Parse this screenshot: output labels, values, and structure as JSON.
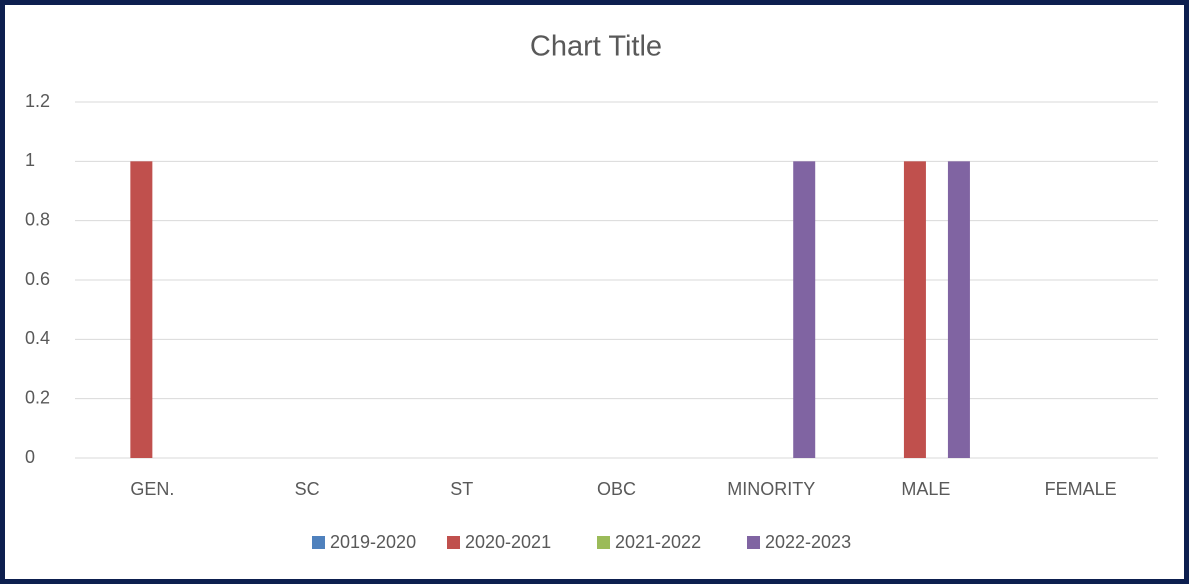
{
  "chart_data": {
    "type": "bar",
    "title": "Chart Title",
    "categories": [
      "GEN.",
      "SC",
      "ST",
      "OBC",
      "MINORITY",
      "MALE",
      "FEMALE"
    ],
    "series": [
      {
        "name": "2019-2020",
        "color": "#4f81bd",
        "values": [
          0,
          0,
          0,
          0,
          0,
          0,
          0
        ]
      },
      {
        "name": "2020-2021",
        "color": "#c0504d",
        "values": [
          1,
          0,
          0,
          0,
          0,
          1,
          0
        ]
      },
      {
        "name": "2021-2022",
        "color": "#9bbb59",
        "values": [
          0,
          0,
          0,
          0,
          0,
          0,
          0
        ]
      },
      {
        "name": "2022-2023",
        "color": "#8064a2",
        "values": [
          0,
          0,
          0,
          0,
          1,
          1,
          0
        ]
      }
    ],
    "ylim": [
      0,
      1.2
    ],
    "yticks": [
      0,
      0.2,
      0.4,
      0.6,
      0.8,
      1,
      1.2
    ],
    "grid": true,
    "legend": "bottom"
  }
}
